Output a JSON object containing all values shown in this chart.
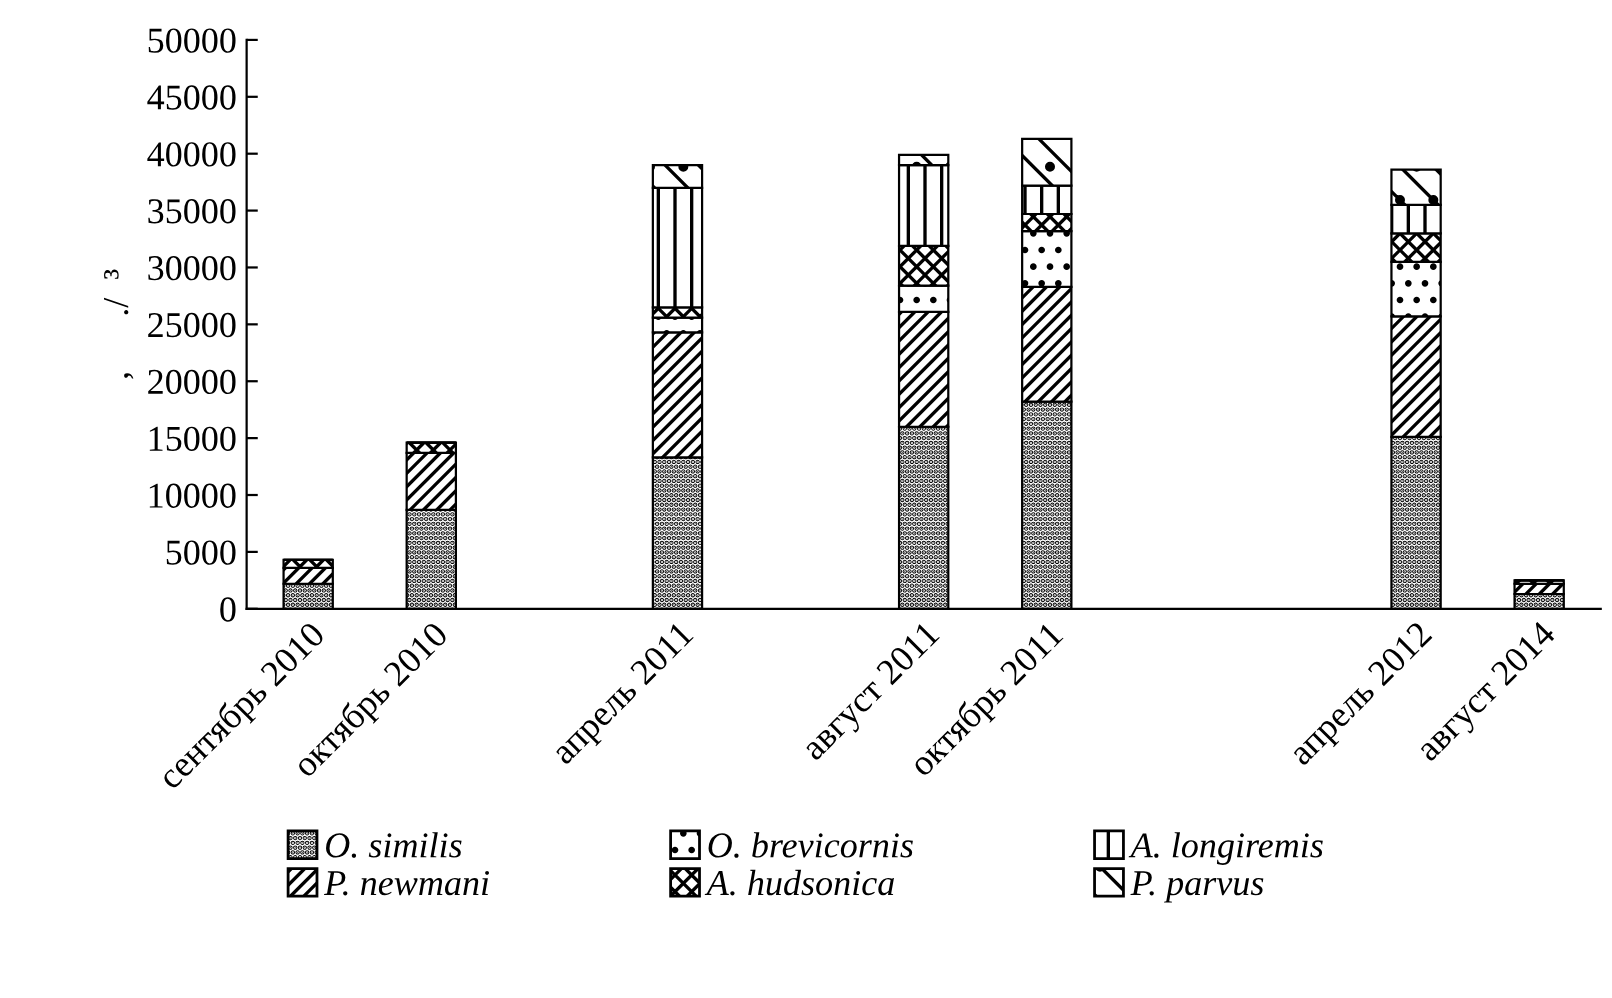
{
  "chart_data": {
    "type": "bar",
    "stacked": true,
    "ylabel": ",      ./  ³",
    "categories": [
      "сентябрь 2010",
      "октябрь 2010",
      null,
      "апрель 2011",
      null,
      "август 2011",
      "октябрь 2011",
      null,
      null,
      "апрель 2012",
      "август 2014"
    ],
    "series": [
      {
        "name": "O. similis",
        "color": "#000000",
        "values": [
          2200,
          8700,
          null,
          13300,
          null,
          16000,
          18200,
          null,
          null,
          15100,
          1300
        ]
      },
      {
        "name": "P. newmani",
        "color": "#000000",
        "values": [
          1400,
          5000,
          null,
          11000,
          null,
          10100,
          10100,
          null,
          null,
          10600,
          900
        ]
      },
      {
        "name": "O. brevicornis",
        "color": "#000000",
        "values": [
          0,
          0,
          null,
          1300,
          null,
          2300,
          4900,
          null,
          null,
          4800,
          0
        ]
      },
      {
        "name": "A. hudsonica",
        "color": "#000000",
        "values": [
          700,
          900,
          null,
          900,
          null,
          3500,
          1500,
          null,
          null,
          2500,
          300
        ]
      },
      {
        "name": "A. longiremis",
        "color": "#000000",
        "values": [
          0,
          0,
          null,
          10500,
          null,
          7100,
          2500,
          null,
          null,
          2500,
          0
        ]
      },
      {
        "name": "P. parvus",
        "color": "#000000",
        "values": [
          0,
          0,
          null,
          2000,
          null,
          900,
          4100,
          null,
          null,
          3100,
          0
        ]
      }
    ],
    "ylim": [
      0,
      50000
    ],
    "yticks": [
      0,
      5000,
      10000,
      15000,
      20000,
      25000,
      30000,
      35000,
      40000,
      45000,
      50000
    ],
    "grid": false,
    "legend": "bottom"
  }
}
